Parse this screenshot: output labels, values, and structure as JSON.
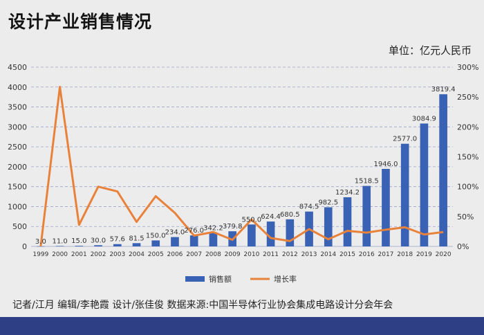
{
  "header": {
    "title": "设计产业销售情况",
    "unit": "单位：亿元人民币"
  },
  "footer": {
    "credits": "记者/江月  编辑/李艳霞  设计/张佳俊  数据来源:中国半导体行业协会集成电路设计分会年会"
  },
  "colors": {
    "bar": "#3a62b4",
    "line": "#e8823a",
    "grid": "#9aa3c8"
  },
  "chart_data": {
    "type": "bar+line",
    "title": "设计产业销售情况",
    "categories": [
      "1999",
      "2000",
      "2001",
      "2002",
      "2003",
      "2004",
      "2005",
      "2006",
      "2007",
      "2008",
      "2009",
      "2010",
      "2011",
      "2012",
      "2013",
      "2014",
      "2015",
      "2016",
      "2017",
      "2018",
      "2019",
      "2020"
    ],
    "series": [
      {
        "name": "销售额",
        "type": "bar",
        "axis": "left",
        "values": [
          3.0,
          11.0,
          15.0,
          30.0,
          57.6,
          81.5,
          150.0,
          234.0,
          276.0,
          342.2,
          379.8,
          550.0,
          624.4,
          680.5,
          874.5,
          982.5,
          1234.2,
          1518.5,
          1946.0,
          2577.0,
          3084.9,
          3819.4
        ],
        "labels": [
          "3.0",
          "11.0",
          "15.0",
          "30.0",
          "57.6",
          "81.5",
          "150.0",
          "234.0",
          "276.0",
          "342.2",
          "379.8",
          "550.0",
          "624.4",
          "680.5",
          "874.5",
          "982.5",
          "1234.2",
          "1518.5",
          "1946.0",
          "2577.0",
          "3084.9",
          "3819.4"
        ]
      },
      {
        "name": "增长率",
        "type": "line",
        "axis": "right",
        "values": [
          0,
          267,
          36,
          100,
          92,
          41,
          84,
          56,
          18,
          24,
          11,
          45,
          14,
          9,
          29,
          12,
          26,
          23,
          28,
          32,
          20,
          24
        ]
      }
    ],
    "left_axis": {
      "min": 0,
      "max": 4500,
      "ticks": [
        "0",
        "500",
        "1000",
        "1500",
        "2000",
        "2500",
        "3000",
        "3500",
        "4000",
        "4500"
      ]
    },
    "right_axis": {
      "min": 0,
      "max": 300,
      "ticks": [
        "0%",
        "50%",
        "100%",
        "150%",
        "200%",
        "250%",
        "300%"
      ]
    },
    "legend": [
      "销售额",
      "增长率"
    ],
    "legend_position": "bottom-center",
    "grid": true
  }
}
